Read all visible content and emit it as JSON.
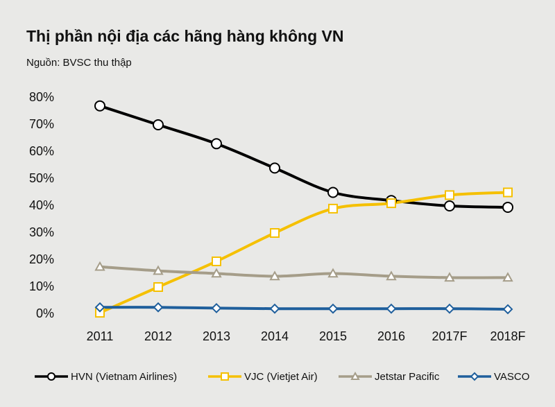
{
  "chart_data": {
    "type": "line",
    "title": "Thị phần nội địa các hãng hàng không VN",
    "subtitle": "Nguồn: BVSC thu thập",
    "categories": [
      "2011",
      "2012",
      "2013",
      "2014",
      "2015",
      "2016",
      "2017F",
      "2018F"
    ],
    "series": [
      {
        "name": "HVN (Vietnam Airlines)",
        "color": "#000000",
        "marker": "circle",
        "values": [
          77,
          70,
          63,
          54,
          45,
          42,
          40,
          39.5
        ]
      },
      {
        "name": "VJC (Vietjet Air)",
        "color": "#f5c000",
        "marker": "square",
        "values": [
          0.5,
          10,
          19.5,
          30,
          39,
          41,
          44,
          45
        ]
      },
      {
        "name": "Jetstar Pacific",
        "color": "#a59d89",
        "marker": "triangle",
        "values": [
          17.5,
          16,
          15,
          14,
          15,
          14,
          13.5,
          13.5
        ]
      },
      {
        "name": "VASCO",
        "color": "#1f5f9c",
        "marker": "diamond",
        "values": [
          2.5,
          2.5,
          2.2,
          2,
          2,
          2,
          2,
          1.8
        ]
      }
    ],
    "ylim": [
      0,
      80
    ],
    "yticks": [
      {
        "value": 0,
        "label": "0%"
      },
      {
        "value": 10,
        "label": "10%"
      },
      {
        "value": 20,
        "label": "20%"
      },
      {
        "value": 30,
        "label": "30%"
      },
      {
        "value": 40,
        "label": "40%"
      },
      {
        "value": 50,
        "label": "50%"
      },
      {
        "value": 60,
        "label": "60%"
      },
      {
        "value": 70,
        "label": "70%"
      },
      {
        "value": 80,
        "label": "80%"
      }
    ],
    "grid": false,
    "legend": "bottom"
  }
}
